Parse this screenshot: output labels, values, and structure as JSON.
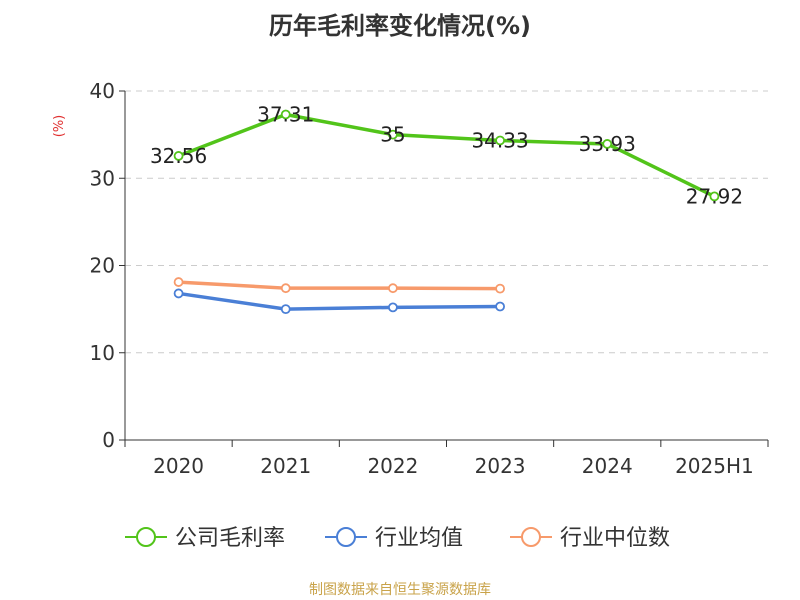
{
  "chart_data": {
    "type": "line",
    "title": "历年毛利率变化情况(%)",
    "ylabel": "(%)",
    "xlabel": "",
    "categories": [
      "2020",
      "2021",
      "2022",
      "2023",
      "2024",
      "2025H1"
    ],
    "ylim": [
      0,
      40
    ],
    "yticks": [
      0,
      10,
      20,
      30,
      40
    ],
    "grid": true,
    "legend_position": "bottom",
    "series": [
      {
        "name": "公司毛利率",
        "color": "#52c41a",
        "values": [
          32.56,
          37.31,
          35,
          34.33,
          33.93,
          27.92
        ],
        "labels": [
          "32.56",
          "37.31",
          "35",
          "34.33",
          "33.93",
          "27.92"
        ]
      },
      {
        "name": "行业均值",
        "color": "#4a7fd6",
        "values": [
          16.8,
          15.0,
          15.2,
          15.3,
          null,
          null
        ]
      },
      {
        "name": "行业中位数",
        "color": "#f79a6b",
        "values": [
          18.1,
          17.4,
          17.4,
          17.35,
          null,
          null
        ]
      }
    ]
  },
  "source": "制图数据来自恒生聚源数据库"
}
